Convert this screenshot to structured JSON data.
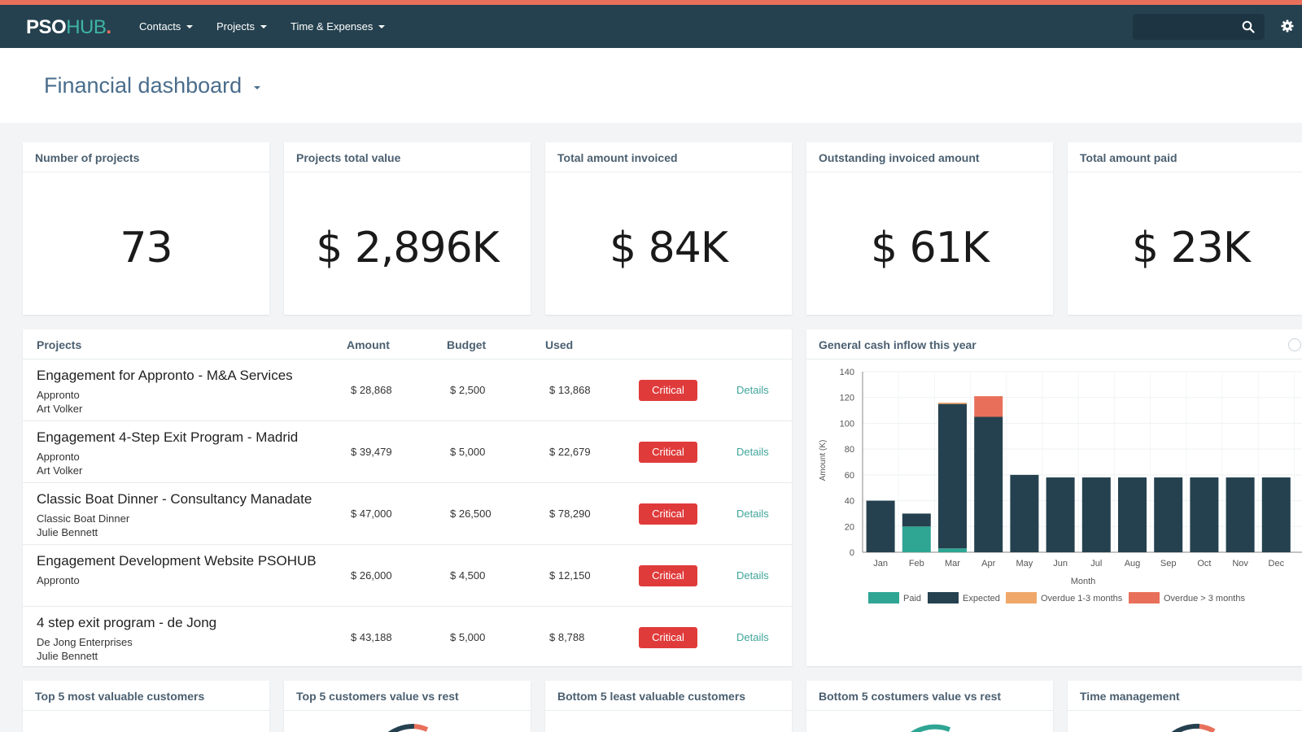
{
  "brand": {
    "part1": "PSO",
    "part2": "HUB",
    "dot": "."
  },
  "nav": {
    "items": [
      {
        "label": "Contacts"
      },
      {
        "label": "Projects"
      },
      {
        "label": "Time & Expenses"
      }
    ]
  },
  "search": {
    "placeholder": ""
  },
  "page": {
    "title": "Financial dashboard"
  },
  "stats": [
    {
      "label": "Number of projects",
      "value": "73"
    },
    {
      "label": "Projects total value",
      "value": "$ 2,896K"
    },
    {
      "label": "Total amount invoiced",
      "value": "$ 84K"
    },
    {
      "label": "Outstanding invoiced amount",
      "value": "$ 61K"
    },
    {
      "label": "Total amount paid",
      "value": "$ 23K"
    }
  ],
  "projects_table": {
    "headers": {
      "name": "Projects",
      "amount": "Amount",
      "budget": "Budget",
      "used": "Used"
    },
    "rows": [
      {
        "name": "Engagement for Appronto - M&A Services",
        "client": "Appronto",
        "person": "Art Volker",
        "amount": "$ 28,868",
        "budget": "$ 2,500",
        "used": "$ 13,868",
        "status": "Critical",
        "action": "Details"
      },
      {
        "name": "Engagement 4-Step Exit Program - Madrid",
        "client": "Appronto",
        "person": "Art Volker",
        "amount": "$ 39,479",
        "budget": "$ 5,000",
        "used": "$ 22,679",
        "status": "Critical",
        "action": "Details"
      },
      {
        "name": "Classic Boat Dinner - Consultancy Manadate",
        "client": "Classic Boat Dinner",
        "person": "Julie Bennett",
        "amount": "$ 47,000",
        "budget": "$ 26,500",
        "used": "$ 78,290",
        "status": "Critical",
        "action": "Details"
      },
      {
        "name": "Engagement Development Website PSOHUB",
        "client": "Appronto",
        "person": "",
        "amount": "$ 26,000",
        "budget": "$ 4,500",
        "used": "$ 12,150",
        "status": "Critical",
        "action": "Details"
      },
      {
        "name": "4 step exit program - de Jong",
        "client": "De Jong Enterprises",
        "person": "Julie Bennett",
        "amount": "$ 43,188",
        "budget": "$ 5,000",
        "used": "$ 8,788",
        "status": "Critical",
        "action": "Details"
      }
    ]
  },
  "bottom_cards": [
    {
      "label": "Top 5 most valuable customers"
    },
    {
      "label": "Top 5 customers value vs rest"
    },
    {
      "label": "Bottom 5 least valuable customers"
    },
    {
      "label": "Bottom 5 costumers value vs rest"
    },
    {
      "label": "Time management"
    }
  ],
  "chart_card": {
    "title": "General cash inflow this year"
  },
  "chart_data": {
    "type": "bar",
    "stacked": true,
    "title": "General cash inflow this year",
    "xlabel": "Month",
    "ylabel": "Amount (K)",
    "ylim": [
      0,
      140
    ],
    "yticks": [
      0,
      20,
      40,
      60,
      80,
      100,
      120,
      140
    ],
    "categories": [
      "Jan",
      "Feb",
      "Mar",
      "Apr",
      "May",
      "Jun",
      "Jul",
      "Aug",
      "Sep",
      "Oct",
      "Nov",
      "Dec"
    ],
    "series": [
      {
        "name": "Paid",
        "color": "#2fa594",
        "values": [
          0,
          20,
          3,
          0,
          0,
          0,
          0,
          0,
          0,
          0,
          0,
          0
        ]
      },
      {
        "name": "Expected",
        "color": "#25414f",
        "values": [
          40,
          10,
          112,
          105,
          60,
          58,
          58,
          58,
          58,
          58,
          58,
          58
        ]
      },
      {
        "name": "Overdue 1-3 months",
        "color": "#f0a86a",
        "values": [
          0,
          0,
          1,
          0,
          0,
          0,
          0,
          0,
          0,
          0,
          0,
          0
        ]
      },
      {
        "name": "Overdue > 3 months",
        "color": "#e8705a",
        "values": [
          0,
          0,
          0,
          16,
          0,
          0,
          0,
          0,
          0,
          0,
          0,
          0
        ]
      }
    ],
    "grid": true,
    "legend": "bottom"
  }
}
